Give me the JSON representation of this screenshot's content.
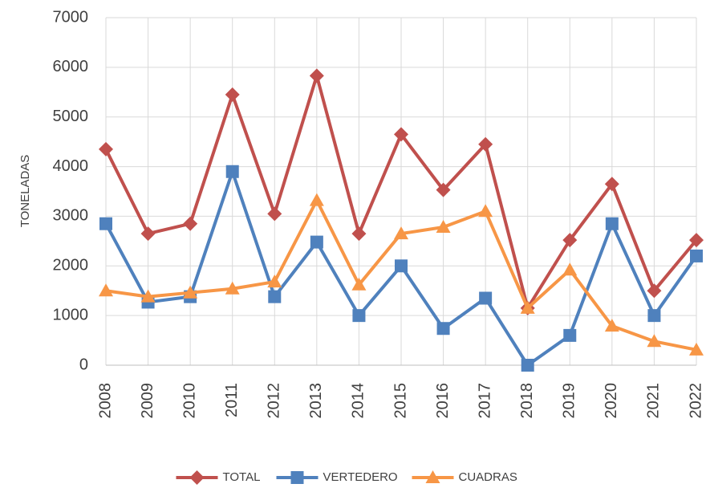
{
  "chart_data": {
    "type": "line",
    "y_label": "TONELADAS",
    "categories": [
      "2008",
      "2009",
      "2010",
      "2011",
      "2012",
      "2013",
      "2014",
      "2015",
      "2016",
      "2017",
      "2018",
      "2019",
      "2020",
      "2021",
      "2022"
    ],
    "series": [
      {
        "name": "TOTAL",
        "color": "#c0504d",
        "marker": "diamond",
        "values": [
          4350,
          2650,
          2850,
          5450,
          3050,
          5830,
          2650,
          4650,
          3530,
          4450,
          1150,
          2520,
          3650,
          1500,
          2520
        ]
      },
      {
        "name": "VERTEDERO",
        "color": "#4f81bd",
        "marker": "square",
        "values": [
          2850,
          1270,
          1380,
          3900,
          1380,
          2480,
          1000,
          2000,
          740,
          1350,
          0,
          600,
          2850,
          1000,
          2200
        ]
      },
      {
        "name": "CUADRAS",
        "color": "#f79646",
        "marker": "triangle",
        "values": [
          1500,
          1380,
          1460,
          1540,
          1680,
          3320,
          1620,
          2650,
          2780,
          3100,
          1150,
          1920,
          790,
          480,
          310
        ]
      }
    ],
    "ylim": [
      0,
      7000
    ],
    "yticks": [
      0,
      1000,
      2000,
      3000,
      4000,
      5000,
      6000,
      7000
    ],
    "grid": true,
    "legend": "bottom"
  }
}
